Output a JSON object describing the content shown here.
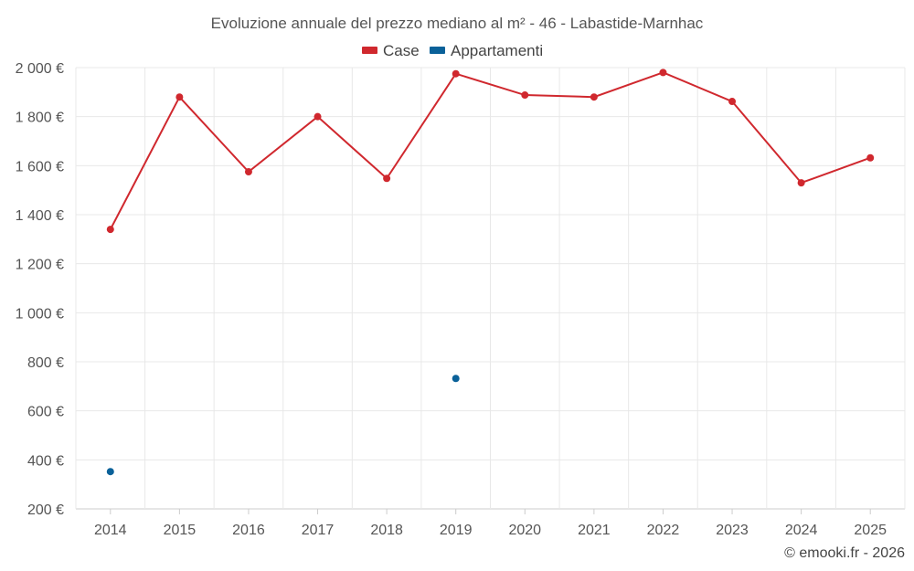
{
  "chart_data": {
    "type": "line",
    "title": "Evoluzione annuale del prezzo mediano al m² - 46 - Labastide-Marnhac",
    "xlabel": "",
    "ylabel": "",
    "categories": [
      "2014",
      "2015",
      "2016",
      "2017",
      "2018",
      "2019",
      "2020",
      "2021",
      "2022",
      "2023",
      "2024",
      "2025"
    ],
    "ylim": [
      200,
      2000
    ],
    "yticks": [
      200,
      400,
      600,
      800,
      1000,
      1200,
      1400,
      1600,
      1800,
      2000
    ],
    "ytick_labels": [
      "200 €",
      "400 €",
      "600 €",
      "800 €",
      "1 000 €",
      "1 200 €",
      "1 400 €",
      "1 600 €",
      "1 800 €",
      "2 000 €"
    ],
    "legend_position": "top-center",
    "series": [
      {
        "name": "Case",
        "color": "#d0282e",
        "line": true,
        "values": [
          1340,
          1880,
          1575,
          1800,
          1548,
          1975,
          1888,
          1880,
          1980,
          1862,
          1530,
          1632
        ]
      },
      {
        "name": "Appartamenti",
        "color": "#0a6199",
        "line": false,
        "values": [
          352,
          null,
          null,
          null,
          null,
          732,
          null,
          null,
          null,
          null,
          null,
          null
        ]
      }
    ]
  },
  "credit": "© emooki.fr - 2026"
}
